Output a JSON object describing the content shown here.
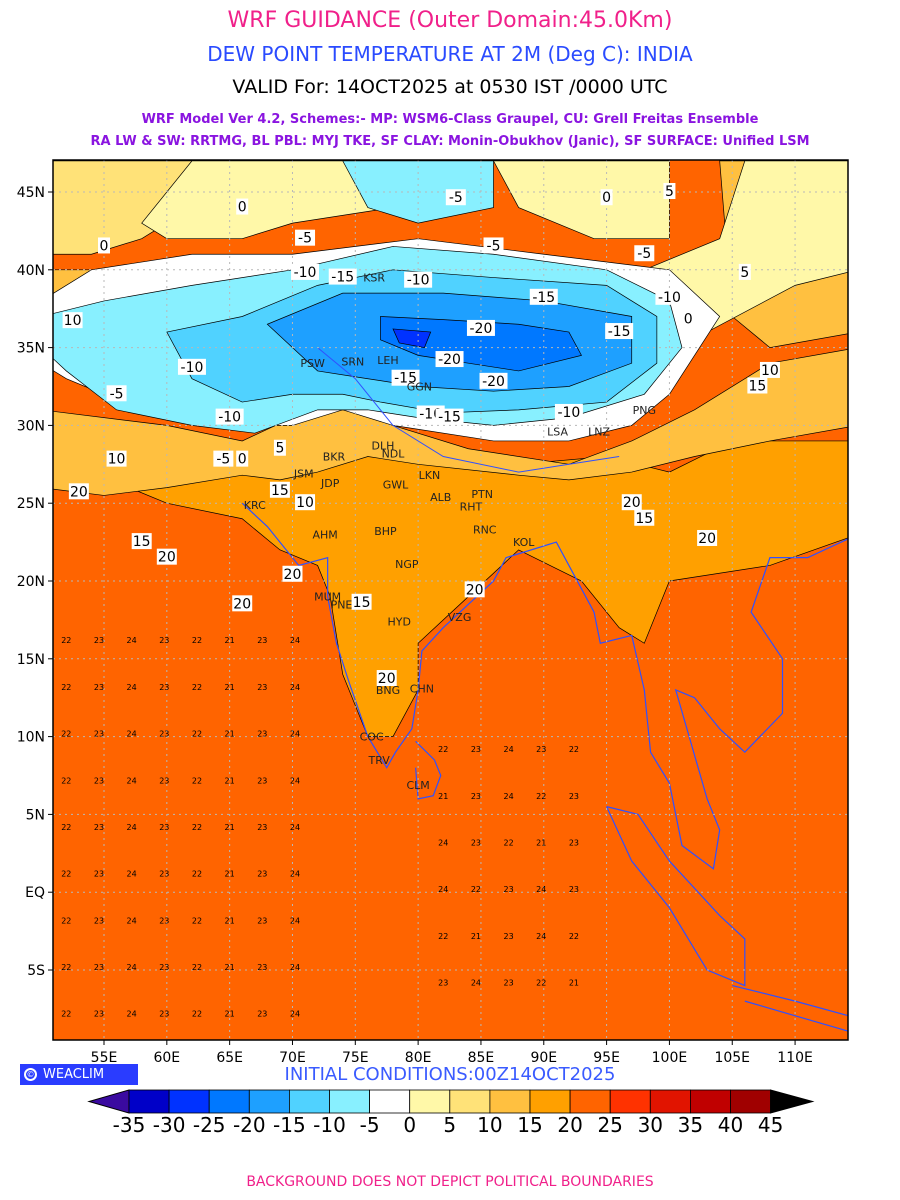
{
  "header": {
    "title": "WRF GUIDANCE (Outer Domain:45.0Km)",
    "subtitle": "DEW POINT TEMPERATURE AT 2M (Deg C): INDIA",
    "valid": "VALID For: 14OCT2025 at 0530 IST /0000 UTC",
    "model_line1": "WRF Model Ver 4.2, Schemes:- MP: WSM6-Class Graupel, CU: Grell Freitas Ensemble",
    "model_line2": "RA LW & SW: RRTMG, BL PBL: MYJ TKE, SF CLAY: Monin-Obukhov (Janic), SF SURFACE: Unified LSM"
  },
  "map": {
    "lon_labels": [
      "55E",
      "60E",
      "65E",
      "70E",
      "75E",
      "80E",
      "85E",
      "90E",
      "95E",
      "100E",
      "105E",
      "110E"
    ],
    "lon_values": [
      55,
      60,
      65,
      70,
      75,
      80,
      85,
      90,
      95,
      100,
      105,
      110
    ],
    "lat_labels": [
      "45N",
      "40N",
      "35N",
      "30N",
      "25N",
      "20N",
      "15N",
      "10N",
      "5N",
      "EQ",
      "5S"
    ],
    "lat_values": [
      45,
      40,
      35,
      30,
      25,
      20,
      15,
      10,
      5,
      0,
      -5
    ],
    "cities": [
      {
        "name": "KSR",
        "lon": 76.5,
        "lat": 39.5
      },
      {
        "name": "PSW",
        "lon": 71.6,
        "lat": 34.0
      },
      {
        "name": "SRN",
        "lon": 74.8,
        "lat": 34.1
      },
      {
        "name": "LEH",
        "lon": 77.6,
        "lat": 34.2
      },
      {
        "name": "GGN",
        "lon": 80.1,
        "lat": 32.5
      },
      {
        "name": "DLH",
        "lon": 77.2,
        "lat": 28.7
      },
      {
        "name": "NDL",
        "lon": 78.0,
        "lat": 28.2
      },
      {
        "name": "BKR",
        "lon": 73.3,
        "lat": 28.0
      },
      {
        "name": "JSM",
        "lon": 70.9,
        "lat": 26.9
      },
      {
        "name": "JDP",
        "lon": 73.0,
        "lat": 26.3
      },
      {
        "name": "KRC",
        "lon": 67.0,
        "lat": 24.9
      },
      {
        "name": "AHM",
        "lon": 72.6,
        "lat": 23.0
      },
      {
        "name": "GWL",
        "lon": 78.2,
        "lat": 26.2
      },
      {
        "name": "LKN",
        "lon": 80.9,
        "lat": 26.8
      },
      {
        "name": "ALB",
        "lon": 81.8,
        "lat": 25.4
      },
      {
        "name": "PTN",
        "lon": 85.1,
        "lat": 25.6
      },
      {
        "name": "RHT",
        "lon": 84.2,
        "lat": 24.8
      },
      {
        "name": "RNC",
        "lon": 85.3,
        "lat": 23.3
      },
      {
        "name": "BHP",
        "lon": 77.4,
        "lat": 23.2
      },
      {
        "name": "NGP",
        "lon": 79.1,
        "lat": 21.1
      },
      {
        "name": "KOL",
        "lon": 88.4,
        "lat": 22.5
      },
      {
        "name": "MUM",
        "lon": 72.8,
        "lat": 19.0
      },
      {
        "name": "PNE",
        "lon": 73.9,
        "lat": 18.5
      },
      {
        "name": "HYD",
        "lon": 78.5,
        "lat": 17.4
      },
      {
        "name": "VZG",
        "lon": 83.3,
        "lat": 17.7
      },
      {
        "name": "BNG",
        "lon": 77.6,
        "lat": 13.0
      },
      {
        "name": "CHN",
        "lon": 80.3,
        "lat": 13.1
      },
      {
        "name": "COC",
        "lon": 76.3,
        "lat": 10.0
      },
      {
        "name": "TRV",
        "lon": 76.9,
        "lat": 8.5
      },
      {
        "name": "CLM",
        "lon": 80.0,
        "lat": 6.9
      },
      {
        "name": "LSA",
        "lon": 91.1,
        "lat": 29.6
      },
      {
        "name": "LNZ",
        "lon": 94.4,
        "lat": 29.6
      },
      {
        "name": "PNG",
        "lon": 98.0,
        "lat": 31.0
      }
    ],
    "contour_labels": [
      {
        "v": "-5",
        "lon": 83,
        "lat": 44.6
      },
      {
        "v": "0",
        "lon": 66,
        "lat": 44
      },
      {
        "v": "-5",
        "lon": 71,
        "lat": 42
      },
      {
        "v": "-10",
        "lon": 71,
        "lat": 39.8
      },
      {
        "v": "-15",
        "lon": 74,
        "lat": 39.5
      },
      {
        "v": "-10",
        "lon": 80,
        "lat": 39.3
      },
      {
        "v": "-15",
        "lon": 90,
        "lat": 38.2
      },
      {
        "v": "-10",
        "lon": 100,
        "lat": 38.2
      },
      {
        "v": "-20",
        "lon": 85,
        "lat": 36.2
      },
      {
        "v": "-15",
        "lon": 96,
        "lat": 36
      },
      {
        "v": "-20",
        "lon": 82.5,
        "lat": 34.2
      },
      {
        "v": "-20",
        "lon": 86,
        "lat": 32.8
      },
      {
        "v": "-15",
        "lon": 79,
        "lat": 33
      },
      {
        "v": "-10",
        "lon": 62,
        "lat": 33.7
      },
      {
        "v": "-10",
        "lon": 65,
        "lat": 30.5
      },
      {
        "v": "-10",
        "lon": 81,
        "lat": 30.7
      },
      {
        "v": "-15",
        "lon": 82.5,
        "lat": 30.5
      },
      {
        "v": "-10",
        "lon": 92,
        "lat": 30.8
      },
      {
        "v": "-5",
        "lon": 56,
        "lat": 32
      },
      {
        "v": "-5",
        "lon": 64.5,
        "lat": 27.8
      },
      {
        "v": "0",
        "lon": 66,
        "lat": 27.8
      },
      {
        "v": "5",
        "lon": 69,
        "lat": 28.5
      },
      {
        "v": "10",
        "lon": 56,
        "lat": 27.8
      },
      {
        "v": "20",
        "lon": 53,
        "lat": 25.7
      },
      {
        "v": "15",
        "lon": 69,
        "lat": 25.8
      },
      {
        "v": "10",
        "lon": 71,
        "lat": 25
      },
      {
        "v": "15",
        "lon": 58,
        "lat": 22.5
      },
      {
        "v": "20",
        "lon": 60,
        "lat": 21.5
      },
      {
        "v": "20",
        "lon": 70,
        "lat": 20.4
      },
      {
        "v": "20",
        "lon": 66,
        "lat": 18.5
      },
      {
        "v": "15",
        "lon": 75.5,
        "lat": 18.6
      },
      {
        "v": "20",
        "lon": 97,
        "lat": 25
      },
      {
        "v": "15",
        "lon": 98,
        "lat": 24
      },
      {
        "v": "20",
        "lon": 103,
        "lat": 22.7
      },
      {
        "v": "15",
        "lon": 107,
        "lat": 32.5
      },
      {
        "v": "10",
        "lon": 108,
        "lat": 33.5
      },
      {
        "v": "5",
        "lon": 106,
        "lat": 39.8
      },
      {
        "v": "0",
        "lon": 101.5,
        "lat": 36.8
      },
      {
        "v": "5",
        "lon": 100,
        "lat": 45
      },
      {
        "v": "0",
        "lon": 95,
        "lat": 44.6
      },
      {
        "v": "-5",
        "lon": 98,
        "lat": 41
      },
      {
        "v": "0",
        "lon": 55,
        "lat": 41.5
      },
      {
        "v": "10",
        "lon": 52.5,
        "lat": 36.7
      },
      {
        "v": "-5",
        "lon": 86,
        "lat": 41.5
      },
      {
        "v": "20",
        "lon": 84.5,
        "lat": 19.4
      },
      {
        "v": "20",
        "lon": 77.5,
        "lat": 13.7
      }
    ],
    "land_value_sample": [
      "22",
      "23",
      "24",
      "23",
      "22",
      "21",
      "23",
      "24"
    ]
  },
  "colorbar": {
    "labels": [
      "-35",
      "-30",
      "-25",
      "-20",
      "-15",
      "-10",
      "-5",
      "0",
      "5",
      "10",
      "15",
      "20",
      "25",
      "30",
      "35",
      "40",
      "45"
    ],
    "colors": [
      "#3a0aa0",
      "#0000c8",
      "#0032ff",
      "#0078ff",
      "#1ea0ff",
      "#50d2ff",
      "#88f0ff",
      "#ffffff",
      "#fff8a8",
      "#ffe278",
      "#ffc040",
      "#ffa000",
      "#ff6400",
      "#ff3200",
      "#e11400",
      "#c00000",
      "#a00000",
      "#000000"
    ]
  },
  "footer": {
    "logo": "WEACLIM",
    "logo_symbol": "©",
    "initial_conditions": "INITIAL CONDITIONS:00Z14OCT2025",
    "disclaimer": "BACKGROUND DOES NOT DEPICT POLITICAL BOUNDARIES"
  }
}
